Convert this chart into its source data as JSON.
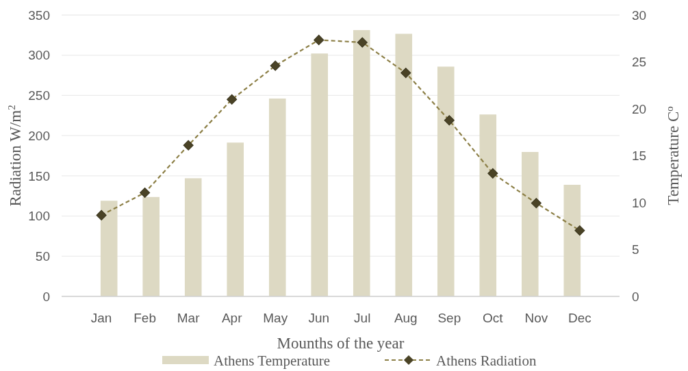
{
  "chart_data": {
    "type": "bar",
    "xlabel": "Mounths of the year",
    "ylabel": "Radiation W/m$^{2}$",
    "y2label": "Temperature C$^{o}$",
    "categories": [
      "Jan",
      "Feb",
      "Mar",
      "Apr",
      "May",
      "Jun",
      "Jul",
      "Aug",
      "Sep",
      "Oct",
      "Nov",
      "Dec"
    ],
    "series": [
      {
        "name": "Athens Temperature",
        "axis": "y2",
        "color": "#ddd9c3",
        "values": [
          10.2,
          10.6,
          12.6,
          16.4,
          21.1,
          25.9,
          28.4,
          28.0,
          24.5,
          19.4,
          15.4,
          11.9
        ]
      },
      {
        "name": "Athens Radiation",
        "type": "line",
        "axis": "y",
        "color": "#8c7f46",
        "marker": "diamond",
        "line_style": "dashed",
        "values": [
          101,
          129,
          188,
          245,
          287,
          319,
          316,
          278,
          219,
          153,
          116,
          82
        ]
      }
    ],
    "ylim": [
      0,
      350
    ],
    "yticks": [
      0,
      50,
      100,
      150,
      200,
      250,
      300,
      350
    ],
    "y2lim": [
      0,
      30
    ],
    "y2ticks": [
      0,
      5,
      10,
      15,
      20,
      25,
      30
    ],
    "grid": "y",
    "legend": "bottom"
  }
}
